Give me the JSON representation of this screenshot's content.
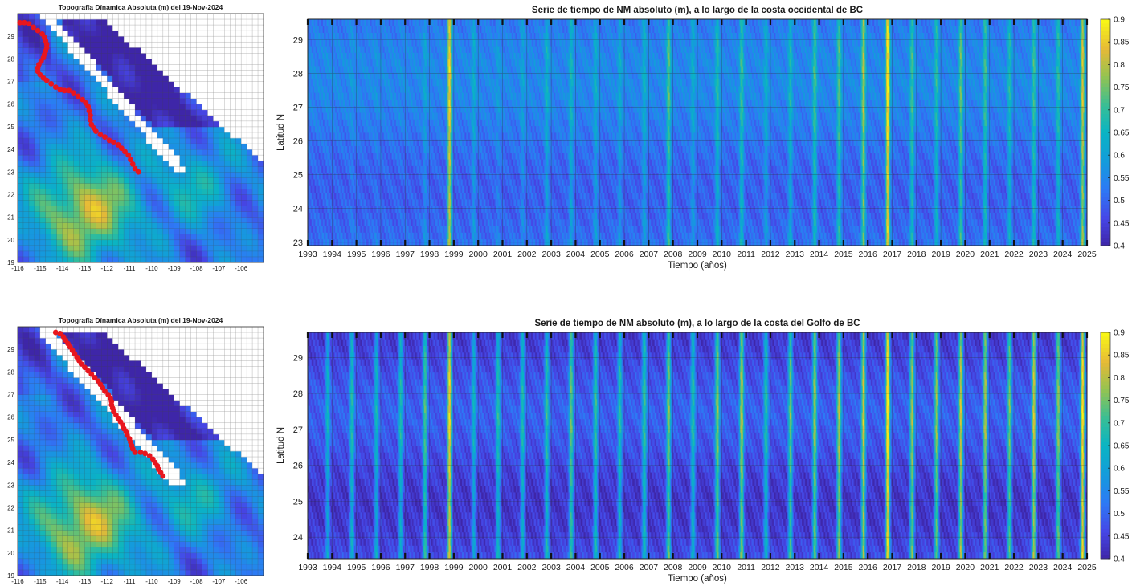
{
  "chart_data": [
    {
      "type": "heatmap",
      "title": "Topografía Dínamica Absoluta  (m) del 19-Nov-2024",
      "xlim": [
        -116,
        -105
      ],
      "ylim": [
        19,
        30
      ],
      "xticks": [
        "-116",
        "-115",
        "-114",
        "-113",
        "-112",
        "-111",
        "-110",
        "-109",
        "-108",
        "-107",
        "-106"
      ],
      "yticks": [
        "19",
        "20",
        "21",
        "22",
        "23",
        "24",
        "25",
        "26",
        "27",
        "28",
        "29"
      ],
      "grid": true,
      "colormap": "parula",
      "color_range": [
        0.4,
        0.9
      ],
      "coast_transect": {
        "color": "#e8161e",
        "points": [
          [
            -115.9,
            29.6
          ],
          [
            -115.7,
            29.6
          ],
          [
            -115.5,
            29.55
          ],
          [
            -115.3,
            29.4
          ],
          [
            -115.1,
            29.25
          ],
          [
            -114.9,
            29.1
          ],
          [
            -114.8,
            28.95
          ],
          [
            -114.75,
            28.8
          ],
          [
            -114.7,
            28.65
          ],
          [
            -114.7,
            28.5
          ],
          [
            -114.75,
            28.35
          ],
          [
            -114.8,
            28.2
          ],
          [
            -114.85,
            28.05
          ],
          [
            -114.95,
            27.9
          ],
          [
            -115.05,
            27.75
          ],
          [
            -115.1,
            27.6
          ],
          [
            -115.1,
            27.45
          ],
          [
            -115.0,
            27.3
          ],
          [
            -114.85,
            27.15
          ],
          [
            -114.7,
            27.05
          ],
          [
            -114.5,
            26.9
          ],
          [
            -114.3,
            26.75
          ],
          [
            -114.1,
            26.65
          ],
          [
            -113.9,
            26.6
          ],
          [
            -113.7,
            26.6
          ],
          [
            -113.5,
            26.5
          ],
          [
            -113.3,
            26.35
          ],
          [
            -113.1,
            26.2
          ],
          [
            -112.95,
            26.05
          ],
          [
            -112.85,
            25.9
          ],
          [
            -112.8,
            25.7
          ],
          [
            -112.75,
            25.5
          ],
          [
            -112.75,
            25.3
          ],
          [
            -112.7,
            25.1
          ],
          [
            -112.6,
            24.95
          ],
          [
            -112.5,
            24.8
          ],
          [
            -112.3,
            24.65
          ],
          [
            -112.1,
            24.55
          ],
          [
            -111.9,
            24.4
          ],
          [
            -111.7,
            24.3
          ],
          [
            -111.5,
            24.2
          ],
          [
            -111.35,
            24.05
          ],
          [
            -111.2,
            23.9
          ],
          [
            -111.05,
            23.75
          ],
          [
            -110.95,
            23.55
          ],
          [
            -110.85,
            23.35
          ],
          [
            -110.75,
            23.15
          ],
          [
            -110.6,
            23.0
          ]
        ]
      }
    },
    {
      "type": "heatmap",
      "title": "Serie de tiempo de NM absoluto (m), a lo largo de la costa occidental de BC",
      "xlabel": "Tiempo (años)",
      "ylabel": "Latitud N",
      "xlim": [
        1993,
        2025
      ],
      "ylim": [
        22.9,
        29.6
      ],
      "xticks": [
        "1993",
        "1994",
        "1995",
        "1996",
        "1997",
        "1998",
        "1999",
        "2000",
        "2001",
        "2002",
        "2003",
        "2004",
        "2005",
        "2006",
        "2007",
        "2008",
        "2009",
        "2010",
        "2011",
        "2012",
        "2013",
        "2014",
        "2015",
        "2016",
        "2017",
        "2018",
        "2019",
        "2020",
        "2021",
        "2022",
        "2023",
        "2024",
        "2025"
      ],
      "yticks": [
        "23",
        "24",
        "25",
        "26",
        "27",
        "28",
        "29"
      ],
      "colorbar": {
        "range": [
          0.4,
          0.9
        ],
        "ticks": [
          "0.4",
          "0.45",
          "0.5",
          "0.55",
          "0.6",
          "0.65",
          "0.7",
          "0.75",
          "0.8",
          "0.85",
          "0.9"
        ],
        "colormap": "parula"
      },
      "grid": true,
      "series": [
        {
          "values": [
            0.53,
            0.55,
            0.54,
            0.53,
            0.58,
            0.83,
            0.6,
            0.56,
            0.58,
            0.62,
            0.63,
            0.61,
            0.6,
            0.62,
            0.71,
            0.61,
            0.66,
            0.68,
            0.61,
            0.64,
            0.69,
            0.7,
            0.77,
            0.87,
            0.69,
            0.66,
            0.72,
            0.68,
            0.65,
            0.68,
            0.66,
            0.8,
            0.63
          ]
        }
      ]
    },
    {
      "type": "heatmap",
      "title": "Topografía Dínamica Absoluta  (m) del 19-Nov-2024",
      "xlim": [
        -116,
        -105
      ],
      "ylim": [
        19,
        30
      ],
      "xticks": [
        "-116",
        "-115",
        "-114",
        "-113",
        "-112",
        "-111",
        "-110",
        "-109",
        "-108",
        "-107",
        "-106"
      ],
      "yticks": [
        "19",
        "20",
        "21",
        "22",
        "23",
        "24",
        "25",
        "26",
        "27",
        "28",
        "29"
      ],
      "grid": true,
      "colormap": "parula",
      "color_range": [
        0.4,
        0.9
      ],
      "coast_transect": {
        "color": "#e8161e",
        "points": [
          [
            -114.3,
            29.75
          ],
          [
            -114.1,
            29.7
          ],
          [
            -113.95,
            29.55
          ],
          [
            -113.85,
            29.4
          ],
          [
            -113.75,
            29.25
          ],
          [
            -113.65,
            29.1
          ],
          [
            -113.55,
            28.95
          ],
          [
            -113.45,
            28.8
          ],
          [
            -113.35,
            28.65
          ],
          [
            -113.25,
            28.5
          ],
          [
            -113.15,
            28.35
          ],
          [
            -113.0,
            28.2
          ],
          [
            -112.85,
            28.05
          ],
          [
            -112.7,
            27.9
          ],
          [
            -112.55,
            27.75
          ],
          [
            -112.4,
            27.6
          ],
          [
            -112.3,
            27.45
          ],
          [
            -112.2,
            27.3
          ],
          [
            -112.1,
            27.15
          ],
          [
            -111.95,
            27.0
          ],
          [
            -111.85,
            26.85
          ],
          [
            -111.8,
            26.7
          ],
          [
            -111.8,
            26.55
          ],
          [
            -111.75,
            26.4
          ],
          [
            -111.7,
            26.25
          ],
          [
            -111.6,
            26.1
          ],
          [
            -111.5,
            25.95
          ],
          [
            -111.4,
            25.8
          ],
          [
            -111.3,
            25.65
          ],
          [
            -111.25,
            25.5
          ],
          [
            -111.15,
            25.35
          ],
          [
            -111.1,
            25.2
          ],
          [
            -111.0,
            25.05
          ],
          [
            -110.95,
            24.9
          ],
          [
            -110.9,
            24.75
          ],
          [
            -110.85,
            24.6
          ],
          [
            -110.75,
            24.45
          ],
          [
            -110.5,
            24.45
          ],
          [
            -110.3,
            24.4
          ],
          [
            -110.1,
            24.3
          ],
          [
            -109.95,
            24.15
          ],
          [
            -109.85,
            24.0
          ],
          [
            -109.75,
            23.85
          ],
          [
            -109.7,
            23.7
          ],
          [
            -109.6,
            23.55
          ],
          [
            -109.5,
            23.4
          ]
        ]
      }
    },
    {
      "type": "heatmap",
      "title": "Serie de tiempo de NM absoluto (m), a lo largo de la costa del Golfo de BC",
      "xlabel": "Tiempo (años)",
      "ylabel": "Latitud N",
      "xlim": [
        1993,
        2025
      ],
      "ylim": [
        23.4,
        29.7
      ],
      "xticks": [
        "1993",
        "1994",
        "1995",
        "1996",
        "1997",
        "1998",
        "1999",
        "2000",
        "2001",
        "2002",
        "2003",
        "2004",
        "2005",
        "2006",
        "2007",
        "2008",
        "2009",
        "2010",
        "2011",
        "2012",
        "2013",
        "2014",
        "2015",
        "2016",
        "2017",
        "2018",
        "2019",
        "2020",
        "2021",
        "2022",
        "2023",
        "2024",
        "2025"
      ],
      "yticks": [
        "24",
        "25",
        "26",
        "27",
        "28",
        "29"
      ],
      "colorbar": {
        "range": [
          0.4,
          0.9
        ],
        "ticks": [
          "0.4",
          "0.45",
          "0.5",
          "0.55",
          "0.6",
          "0.65",
          "0.7",
          "0.75",
          "0.8",
          "0.85",
          "0.9"
        ],
        "colormap": "parula"
      },
      "grid": true,
      "series": [
        {
          "values": [
            0.62,
            0.66,
            0.63,
            0.65,
            0.7,
            0.84,
            0.62,
            0.66,
            0.65,
            0.67,
            0.72,
            0.68,
            0.66,
            0.69,
            0.74,
            0.67,
            0.76,
            0.78,
            0.67,
            0.72,
            0.76,
            0.78,
            0.8,
            0.88,
            0.77,
            0.75,
            0.8,
            0.77,
            0.73,
            0.8,
            0.75,
            0.86,
            0.7
          ]
        }
      ]
    }
  ]
}
